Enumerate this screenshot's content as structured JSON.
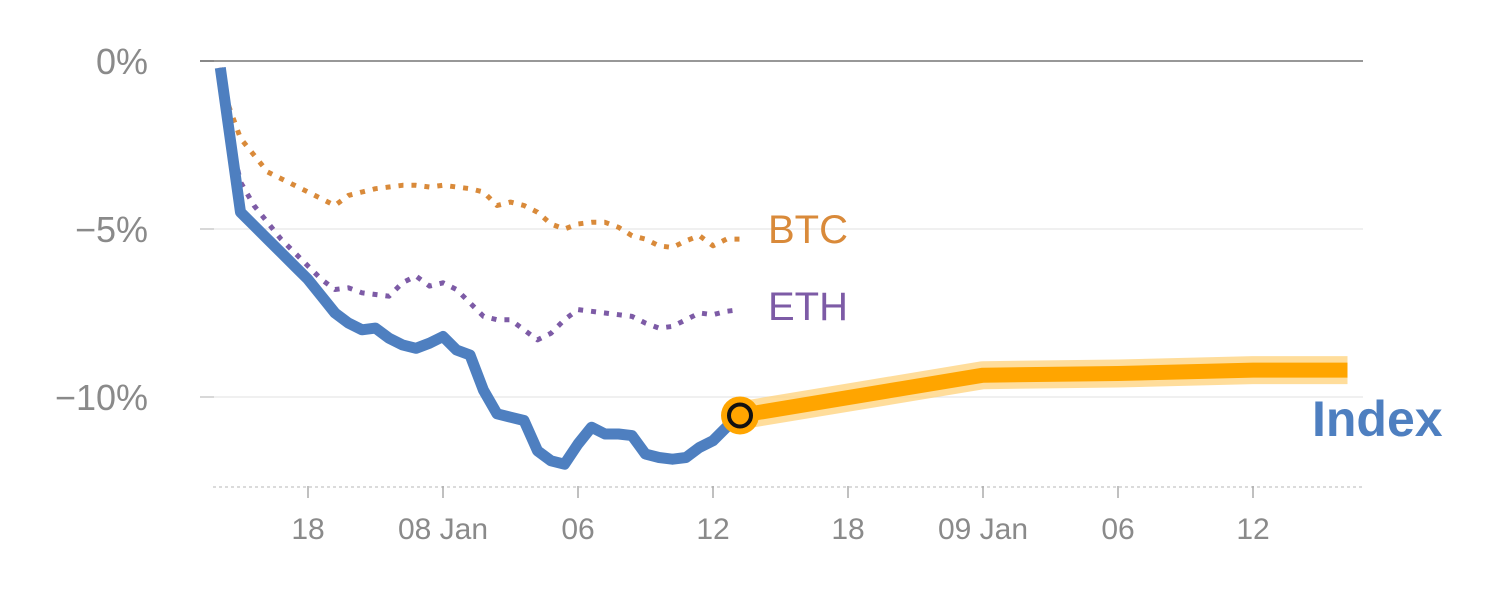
{
  "colors": {
    "index": "#4e7fc0",
    "btc": "#d98a3a",
    "eth": "#7d5ba6",
    "forecast": "#ffa500",
    "forecast_band": "#ffd27a",
    "axis_text": "#8a8a8a",
    "zero_line": "#777777",
    "grid": "#e6e6e6"
  },
  "chart_data": {
    "type": "line",
    "title": "",
    "xlabel": "",
    "ylabel": "",
    "y_unit": "percent",
    "ylim": [
      -12.6,
      0.2
    ],
    "y_ticks": [
      {
        "value": 0,
        "label": "0%"
      },
      {
        "value": -5,
        "label": "−5%"
      },
      {
        "value": -10,
        "label": "−10%"
      }
    ],
    "x_range": [
      -1,
      84
    ],
    "x_ticks": [
      {
        "x": 8,
        "label": "18"
      },
      {
        "x": 18,
        "label": "08 Jan"
      },
      {
        "x": 28,
        "label": "06"
      },
      {
        "x": 38,
        "label": "12"
      },
      {
        "x": 48,
        "label": "18"
      },
      {
        "x": 58,
        "label": "09 Jan"
      },
      {
        "x": 68,
        "label": "06"
      },
      {
        "x": 78,
        "label": "12"
      }
    ],
    "series": [
      {
        "name": "BTC",
        "label": "BTC",
        "style": "dotted",
        "x": [
          1.5,
          2,
          3,
          4,
          5,
          6,
          7,
          8,
          9,
          10,
          11,
          12,
          13,
          14,
          15,
          16,
          17,
          18,
          19,
          20,
          21,
          22,
          23,
          24,
          25,
          26,
          27,
          28,
          29,
          30,
          31,
          32,
          33,
          34,
          35,
          36,
          37,
          38,
          39,
          40
        ],
        "values": [
          -0.2,
          -1.2,
          -2.3,
          -2.8,
          -3.3,
          -3.5,
          -3.7,
          -3.9,
          -4.1,
          -4.3,
          -4.0,
          -3.9,
          -3.8,
          -3.75,
          -3.7,
          -3.7,
          -3.75,
          -3.7,
          -3.75,
          -3.8,
          -3.9,
          -4.3,
          -4.2,
          -4.3,
          -4.5,
          -4.85,
          -5.0,
          -4.85,
          -4.8,
          -4.8,
          -4.95,
          -5.2,
          -5.3,
          -5.5,
          -5.55,
          -5.35,
          -5.2,
          -5.5,
          -5.3,
          -5.3
        ]
      },
      {
        "name": "ETH",
        "label": "ETH",
        "style": "dotted",
        "x": [
          1.5,
          2,
          3,
          4,
          5,
          6,
          7,
          8,
          9,
          10,
          11,
          12,
          13,
          14,
          15,
          16,
          17,
          18,
          19,
          20,
          21,
          22,
          23,
          24,
          25,
          26,
          27,
          28,
          29,
          30,
          31,
          32,
          33,
          34,
          35,
          36,
          37,
          38,
          39,
          40
        ],
        "values": [
          -0.2,
          -1.8,
          -3.6,
          -4.3,
          -4.8,
          -5.3,
          -5.7,
          -6.1,
          -6.5,
          -6.8,
          -6.75,
          -6.9,
          -6.95,
          -7.0,
          -6.6,
          -6.4,
          -6.7,
          -6.6,
          -6.8,
          -7.2,
          -7.6,
          -7.7,
          -7.7,
          -8.0,
          -8.3,
          -8.1,
          -7.7,
          -7.4,
          -7.45,
          -7.5,
          -7.55,
          -7.6,
          -7.8,
          -7.95,
          -7.9,
          -7.7,
          -7.5,
          -7.55,
          -7.45,
          -7.4
        ]
      },
      {
        "name": "Index",
        "label": "Index",
        "style": "solid",
        "x": [
          1.5,
          3,
          4,
          5,
          6,
          7,
          8,
          9,
          10,
          11,
          12,
          13,
          14,
          15,
          16,
          17,
          18,
          19,
          20,
          21,
          22,
          23,
          24,
          25,
          26,
          27,
          28,
          29,
          30,
          31,
          32,
          33,
          34,
          35,
          36,
          37,
          38,
          39,
          40
        ],
        "values": [
          -0.2,
          -4.5,
          -4.9,
          -5.3,
          -5.7,
          -6.1,
          -6.5,
          -7.0,
          -7.5,
          -7.8,
          -8.0,
          -7.95,
          -8.25,
          -8.45,
          -8.55,
          -8.4,
          -8.2,
          -8.6,
          -8.75,
          -9.8,
          -10.5,
          -10.6,
          -10.7,
          -11.6,
          -11.9,
          -12.0,
          -11.4,
          -10.9,
          -11.1,
          -11.1,
          -11.15,
          -11.7,
          -11.8,
          -11.85,
          -11.8,
          -11.5,
          -11.3,
          -10.9,
          -10.55
        ]
      },
      {
        "name": "Index forecast",
        "label": "",
        "style": "band",
        "x": [
          40,
          58,
          68,
          78,
          85
        ],
        "values": [
          -10.55,
          -9.35,
          -9.3,
          -9.2,
          -9.2
        ]
      }
    ],
    "marker": {
      "x": 40,
      "value": -10.55
    }
  }
}
